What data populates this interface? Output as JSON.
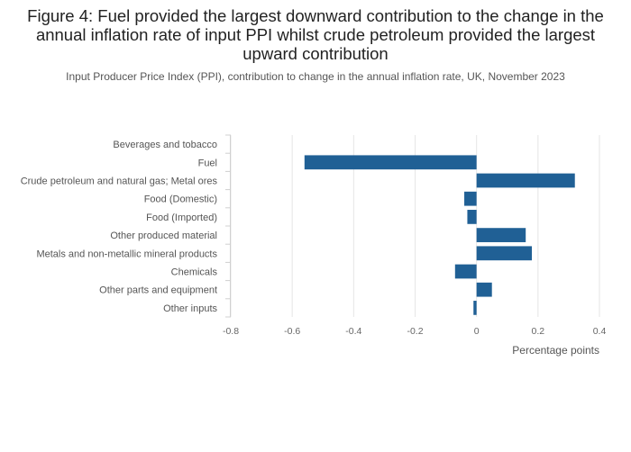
{
  "chart_data": {
    "type": "bar",
    "orientation": "horizontal",
    "title": "Figure 4: Fuel provided the largest downward contribution to the change in the annual inflation rate of input PPI whilst crude petroleum provided the largest upward contribution",
    "subtitle": "Input Producer Price Index (PPI), contribution to change in the annual inflation rate, UK, November 2023",
    "xlabel": "Percentage points",
    "ylabel": "",
    "xlim": [
      -0.8,
      0.4
    ],
    "xticks": [
      -0.8,
      -0.6,
      -0.4,
      -0.2,
      0,
      0.2,
      0.4
    ],
    "xtick_labels": [
      "-0.8",
      "-0.6",
      "-0.4",
      "-0.2",
      "0",
      "0.2",
      "0.4"
    ],
    "grid": true,
    "bar_color": "#206095",
    "categories": [
      "Beverages and tobacco",
      "Fuel",
      "Crude petroleum and natural gas; Metal ores",
      "Food (Domestic)",
      "Food (Imported)",
      "Other produced material",
      "Metals and non-metallic mineral products",
      "Chemicals",
      "Other parts and equipment",
      "Other inputs"
    ],
    "values": [
      0,
      -0.56,
      0.32,
      -0.04,
      -0.03,
      0.16,
      0.18,
      -0.07,
      0.05,
      -0.01
    ]
  }
}
